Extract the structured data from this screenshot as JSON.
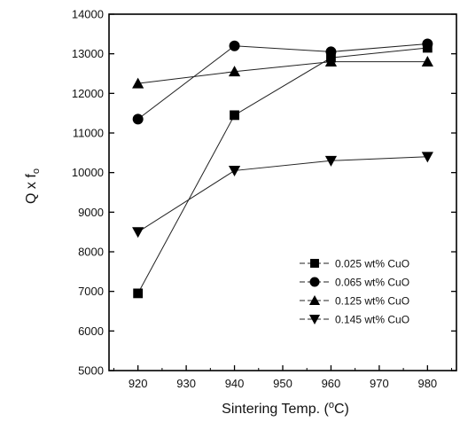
{
  "chart_data": {
    "type": "line",
    "xlabel": "Sintering Temp. (",
    "xlabel_sup": "o",
    "xlabel_end": "C)",
    "ylabel": "Q x f",
    "ylabel_sub": "o",
    "xlim": [
      914,
      986
    ],
    "ylim": [
      5000,
      14000
    ],
    "xticks": [
      920,
      930,
      940,
      950,
      960,
      970,
      980
    ],
    "yticks": [
      5000,
      6000,
      7000,
      8000,
      9000,
      10000,
      11000,
      12000,
      13000,
      14000
    ],
    "legend_position": "bottom-right",
    "x": [
      920,
      940,
      960,
      980
    ],
    "series": [
      {
        "name": "0.025 wt% CuO",
        "marker": "square",
        "values": [
          6950,
          11450,
          12900,
          13150
        ]
      },
      {
        "name": "0.065 wt% CuO",
        "marker": "circle",
        "values": [
          11350,
          13200,
          13050,
          13250
        ]
      },
      {
        "name": "0.125 wt% CuO",
        "marker": "triangle-up",
        "values": [
          12250,
          12550,
          12800,
          12800
        ]
      },
      {
        "name": "0.145 wt% CuO",
        "marker": "triangle-down",
        "values": [
          8500,
          10050,
          10300,
          10400
        ]
      }
    ]
  }
}
